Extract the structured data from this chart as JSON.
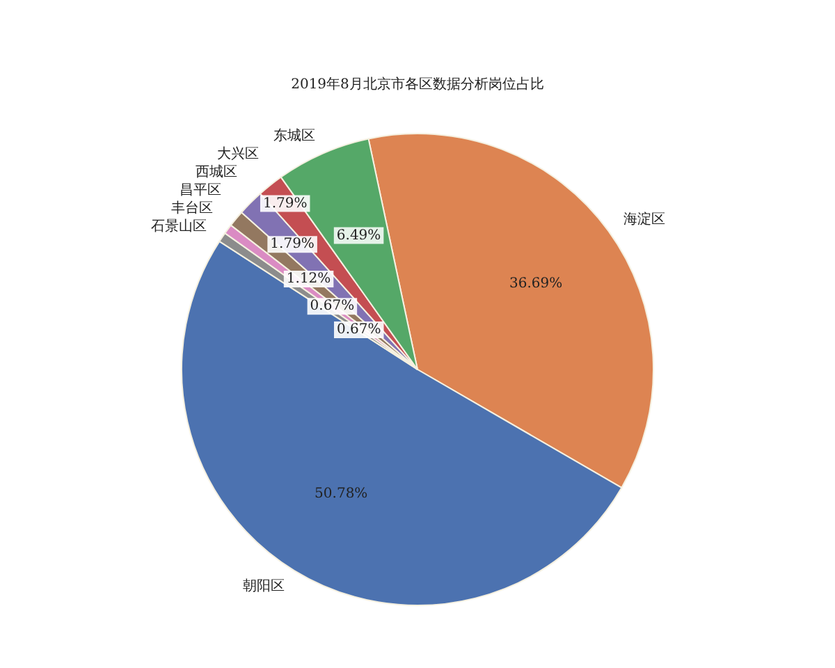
{
  "chart_data": {
    "type": "pie",
    "title": "2019年8月北京市各区数据分析岗位占比",
    "categories": [
      "海淀区",
      "朝阳区",
      "石景山区",
      "丰台区",
      "昌平区",
      "西城区",
      "大兴区",
      "东城区"
    ],
    "values": [
      36.69,
      50.78,
      0.67,
      0.67,
      1.12,
      1.79,
      1.79,
      6.49
    ],
    "value_labels": [
      "36.69%",
      "50.78%",
      "0.67%",
      "0.67%",
      "1.12%",
      "1.79%",
      "1.79%",
      "6.49%"
    ],
    "colors": [
      "#dd8452",
      "#4c72b0",
      "#8c8c8c",
      "#da8bc3",
      "#937860",
      "#8172b3",
      "#c44e52",
      "#55a868"
    ],
    "legend": false
  }
}
